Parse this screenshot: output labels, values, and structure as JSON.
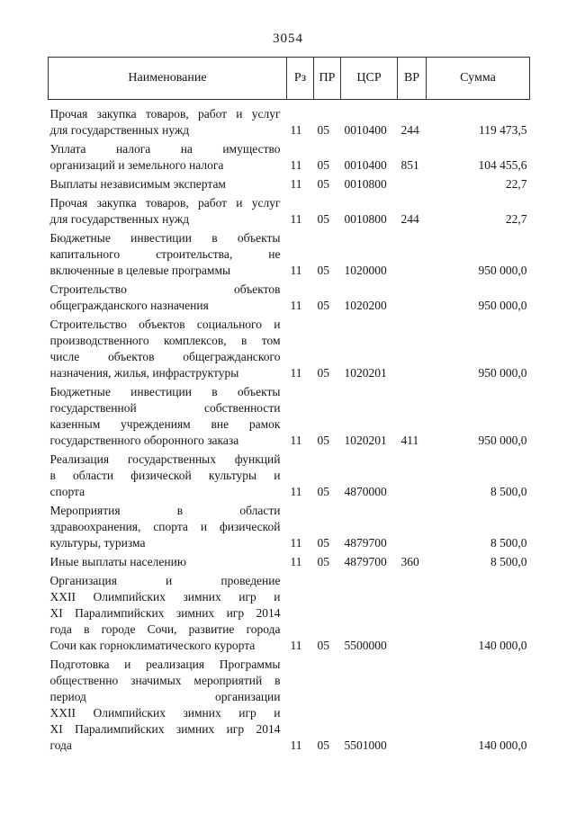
{
  "page": {
    "number": "3054"
  },
  "table": {
    "headers": {
      "name": "Наименование",
      "rz": "Рз",
      "pr": "ПР",
      "csr": "ЦСР",
      "vr": "ВР",
      "summa": "Сумма"
    },
    "rows": [
      {
        "name_lines": [
          "Прочая закупка товаров, работ и услуг",
          "для государственных нужд"
        ],
        "rz": "11",
        "pr": "05",
        "csr": "0010400",
        "vr": "244",
        "summa": "119 473,5"
      },
      {
        "name_lines": [
          "Уплата налога на имущество",
          "организаций и земельного налога"
        ],
        "rz": "11",
        "pr": "05",
        "csr": "0010400",
        "vr": "851",
        "summa": "104 455,6"
      },
      {
        "name_lines": [
          "Выплаты независимым экспертам"
        ],
        "rz": "11",
        "pr": "05",
        "csr": "0010800",
        "vr": "",
        "summa": "22,7"
      },
      {
        "name_lines": [
          "Прочая закупка товаров, работ и услуг",
          "для государственных нужд"
        ],
        "rz": "11",
        "pr": "05",
        "csr": "0010800",
        "vr": "244",
        "summa": "22,7"
      },
      {
        "name_lines": [
          "Бюджетные инвестиции в объекты",
          "капитального строительства, не",
          "включенные в целевые программы"
        ],
        "rz": "11",
        "pr": "05",
        "csr": "1020000",
        "vr": "",
        "summa": "950 000,0"
      },
      {
        "name_lines": [
          "Строительство объектов",
          "общегражданского назначения"
        ],
        "rz": "11",
        "pr": "05",
        "csr": "1020200",
        "vr": "",
        "summa": "950 000,0"
      },
      {
        "name_lines": [
          "Строительство объектов социального и",
          "производственного комплексов, в том",
          "числе объектов общегражданского",
          "назначения, жилья, инфраструктуры"
        ],
        "rz": "11",
        "pr": "05",
        "csr": "1020201",
        "vr": "",
        "summa": "950 000,0"
      },
      {
        "name_lines": [
          "Бюджетные инвестиции в объекты",
          "государственной собственности",
          "казенным учреждениям вне рамок",
          "государственного оборонного заказа"
        ],
        "rz": "11",
        "pr": "05",
        "csr": "1020201",
        "vr": "411",
        "summa": "950 000,0"
      },
      {
        "name_lines": [
          "Реализация государственных функций",
          "в области физической культуры и",
          "спорта"
        ],
        "rz": "11",
        "pr": "05",
        "csr": "4870000",
        "vr": "",
        "summa": "8 500,0"
      },
      {
        "name_lines": [
          "Мероприятия в области",
          "здравоохранения, спорта и физической",
          "культуры, туризма"
        ],
        "rz": "11",
        "pr": "05",
        "csr": "4879700",
        "vr": "",
        "summa": "8 500,0"
      },
      {
        "name_lines": [
          "Иные выплаты населению"
        ],
        "rz": "11",
        "pr": "05",
        "csr": "4879700",
        "vr": "360",
        "summa": "8 500,0"
      },
      {
        "name_lines": [
          "Организация и проведение",
          "XXII Олимпийских зимних игр и",
          "XI Паралимпийских зимних игр 2014",
          "года в городе Сочи, развитие города",
          "Сочи как горноклиматического курорта"
        ],
        "rz": "11",
        "pr": "05",
        "csr": "5500000",
        "vr": "",
        "summa": "140 000,0"
      },
      {
        "name_lines": [
          "Подготовка и реализация Программы",
          "общественно значимых мероприятий в",
          "период организации",
          "XXII Олимпийских зимних игр и",
          "XI Паралимпийских зимних игр 2014",
          "года"
        ],
        "rz": "11",
        "pr": "05",
        "csr": "5501000",
        "vr": "",
        "summa": "140 000,0"
      }
    ]
  }
}
